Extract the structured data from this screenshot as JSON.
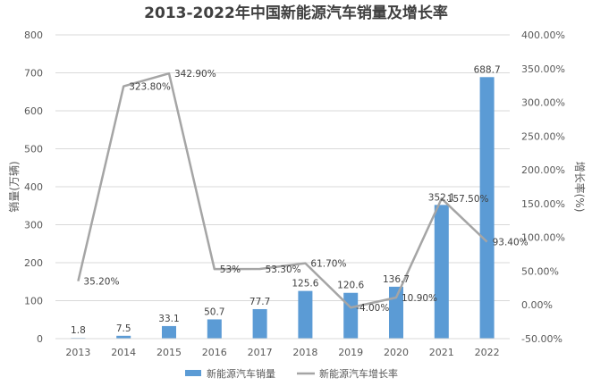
{
  "chart_data": {
    "type": "bar+line",
    "title": "2013-2022年中国新能源汽车销量及增长率",
    "categories": [
      "2013",
      "2014",
      "2015",
      "2016",
      "2017",
      "2018",
      "2019",
      "2020",
      "2021",
      "2022"
    ],
    "series": [
      {
        "name": "新能源汽车销量",
        "type": "bar",
        "axis": "left",
        "color": "#5B9BD5",
        "values": [
          1.8,
          7.5,
          33.1,
          50.7,
          77.7,
          125.6,
          120.6,
          136.7,
          352.1,
          688.7
        ],
        "labels": [
          "1.8",
          "7.5",
          "33.1",
          "50.7",
          "77.7",
          "125.6",
          "120.6",
          "136.7",
          "352.1",
          "688.7"
        ]
      },
      {
        "name": "新能源汽车增长率",
        "type": "line",
        "axis": "right",
        "color": "#A5A5A5",
        "values": [
          35.2,
          323.8,
          342.9,
          53,
          53.3,
          61.7,
          -4.0,
          10.9,
          157.5,
          93.4
        ],
        "labels": [
          "35.20%",
          "323.80%",
          "342.90%",
          "53%",
          "53.30%",
          "61.70%",
          "-4.00%",
          "10.90%",
          "157.50%",
          "93.40%"
        ]
      }
    ],
    "ylabel": "销量(万辆)",
    "y2label": "增长率(%)",
    "ylim": [
      0,
      800
    ],
    "y2lim": [
      -50,
      400
    ],
    "yticks": [
      "0",
      "100",
      "200",
      "300",
      "400",
      "500",
      "600",
      "700",
      "800"
    ],
    "y2ticks": [
      "-50.00%",
      "0.00%",
      "50.00%",
      "100.00%",
      "150.00%",
      "200.00%",
      "250.00%",
      "300.00%",
      "350.00%",
      "400.00%"
    ],
    "grid": true,
    "legend_position": "bottom"
  }
}
